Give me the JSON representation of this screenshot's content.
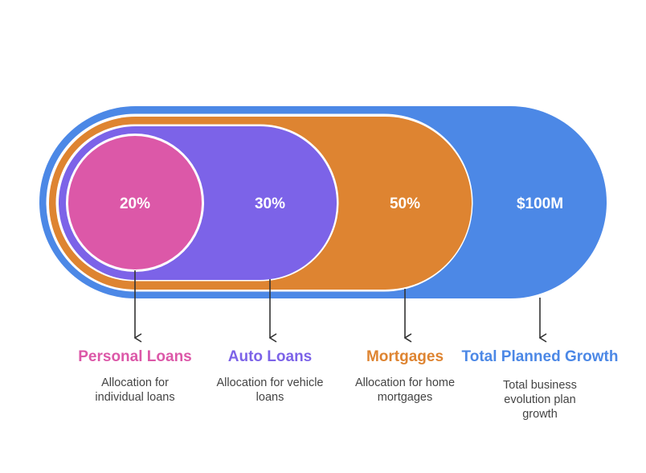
{
  "segments": [
    {
      "value": "20%",
      "label": "Personal Loans",
      "description": "Allocation for individual loans",
      "color": "#DC58A8"
    },
    {
      "value": "30%",
      "label": "Auto Loans",
      "description": "Allocation for vehicle loans",
      "color": "#7C63E8"
    },
    {
      "value": "50%",
      "label": "Mortgages",
      "description": "Allocation for home mortgages",
      "color": "#DE8431"
    },
    {
      "value": "$100M",
      "label": "Total Planned Growth",
      "description": "Total business evolution plan growth",
      "color": "#4C88E6"
    }
  ]
}
